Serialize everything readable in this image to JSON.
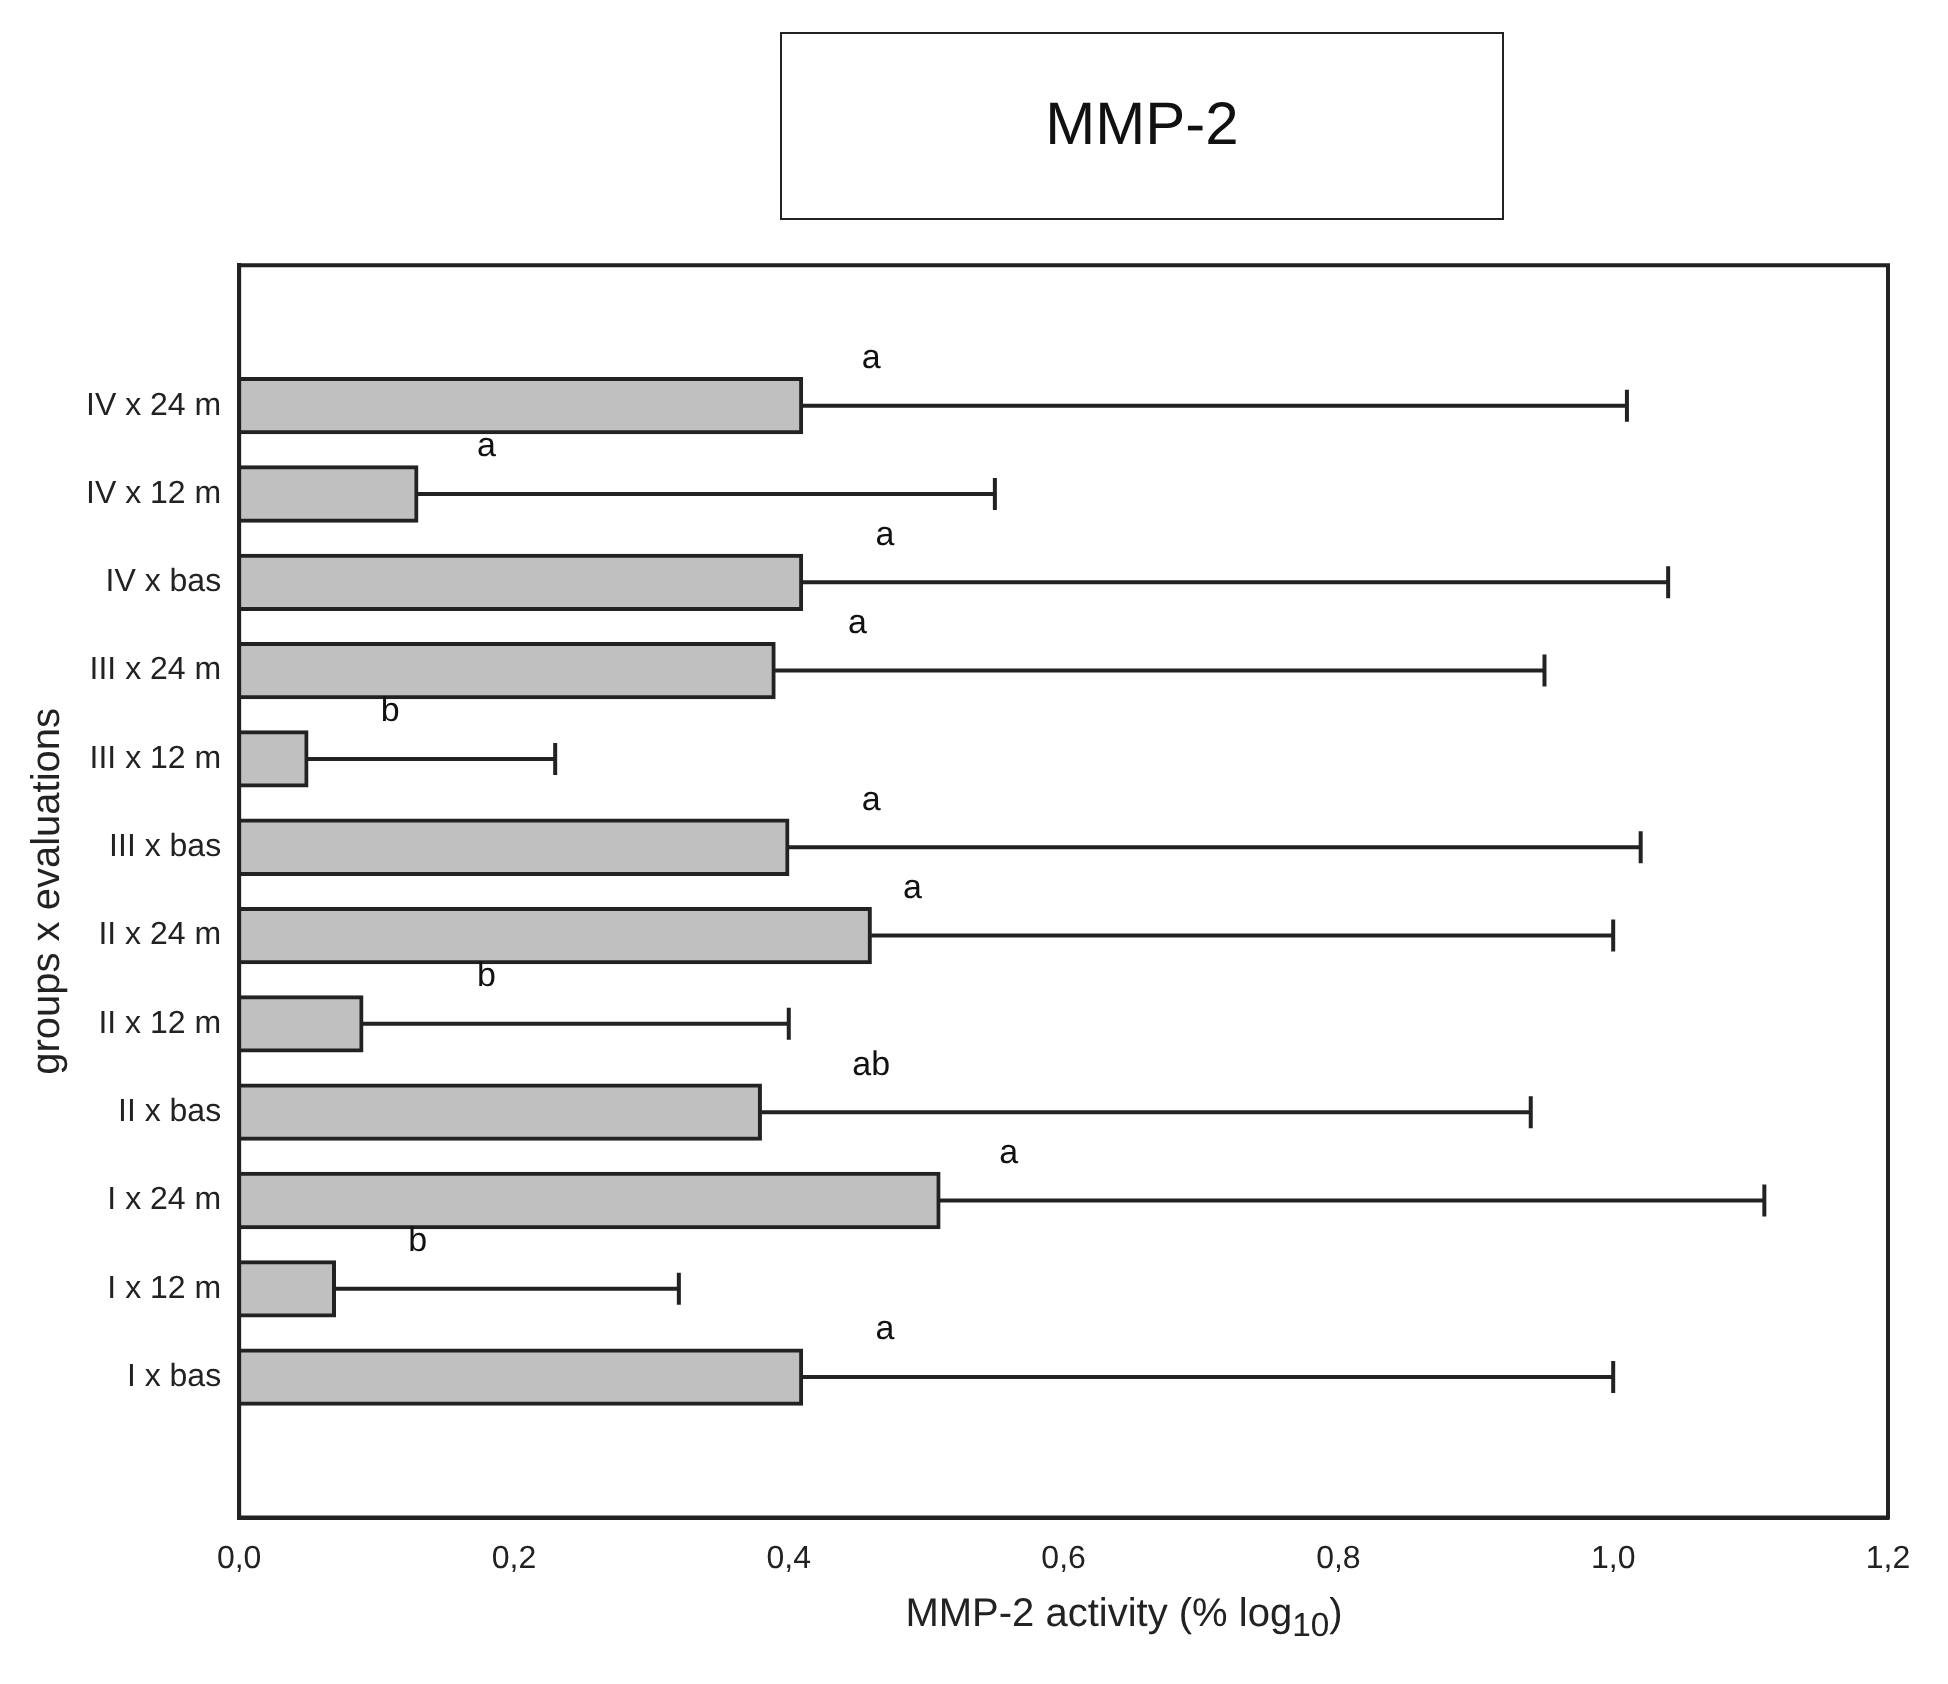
{
  "chart_data": {
    "type": "bar",
    "orientation": "horizontal",
    "title": "MMP-2",
    "xlabel": "MMP-2 activity  (% log$_{10}$)",
    "ylabel": "groups x evaluations",
    "categories": [
      "IV x 24 m",
      "IV x 12 m",
      "IV x bas",
      "III x 24 m",
      "III x 12 m",
      "III x bas",
      "II x 24 m",
      "II x 12 m",
      "II x bas",
      "I x 24 m",
      "I x 12 m",
      "I x bas"
    ],
    "values": [
      0.41,
      0.13,
      0.41,
      0.39,
      0.05,
      0.4,
      0.46,
      0.09,
      0.38,
      0.51,
      0.07,
      0.41
    ],
    "errors": [
      [
        0.41,
        1.01
      ],
      [
        0.13,
        0.55
      ],
      [
        0.41,
        1.04
      ],
      [
        0.39,
        0.95
      ],
      [
        0.05,
        0.23
      ],
      [
        0.4,
        1.02
      ],
      [
        0.46,
        1.0
      ],
      [
        0.09,
        0.4
      ],
      [
        0.38,
        0.94
      ],
      [
        0.51,
        1.11
      ],
      [
        0.07,
        0.32
      ],
      [
        0.41,
        1.0
      ]
    ],
    "color": "#c0c0c0",
    "xlim": [
      0,
      1.2
    ],
    "xticks": [
      {
        "value": 0,
        "label": "0,0"
      },
      {
        "value": 0.2,
        "label": "0,2"
      },
      {
        "value": 0.4,
        "label": "0,4"
      },
      {
        "value": 0.6,
        "label": "0,6"
      },
      {
        "value": 0.8,
        "label": "0,8"
      },
      {
        "value": 1.0,
        "label": "1,0"
      },
      {
        "value": 1.2,
        "label": "1,2"
      }
    ],
    "grid": false,
    "legend": false,
    "annotations": [
      {
        "text": "a",
        "x": 0.46,
        "y": "IV x 24 m"
      },
      {
        "text": "a",
        "x": 0.18,
        "y": "IV x 12 m"
      },
      {
        "text": "a",
        "x": 0.47,
        "y": "IV x bas"
      },
      {
        "text": "a",
        "x": 0.45,
        "y": "III x 24 m"
      },
      {
        "text": "b",
        "x": 0.11,
        "y": "III x 12 m"
      },
      {
        "text": "a",
        "x": 0.46,
        "y": "III x bas"
      },
      {
        "text": "a",
        "x": 0.49,
        "y": "II x 24 m"
      },
      {
        "text": "b",
        "x": 0.18,
        "y": "II x 12 m"
      },
      {
        "text": "ab",
        "x": 0.46,
        "y": "II x bas"
      },
      {
        "text": "a",
        "x": 0.56,
        "y": "I x 24 m"
      },
      {
        "text": "b",
        "x": 0.13,
        "y": "I x 12 m"
      },
      {
        "text": "a",
        "x": 0.47,
        "y": "I x bas"
      }
    ]
  }
}
